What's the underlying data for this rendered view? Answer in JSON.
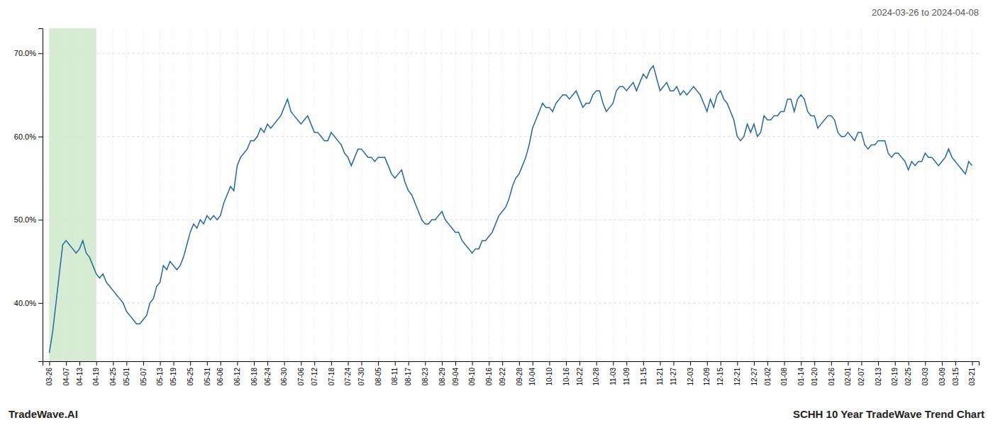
{
  "chart_data": {
    "type": "line",
    "title": "2024-03-26 to 2024-04-08",
    "annotations": [
      "TradeWave.AI",
      "SCHH 10 Year TradeWave Trend Chart"
    ],
    "color": "#2266aa",
    "grid": true,
    "ylim": [
      33,
      73
    ],
    "yticks": [
      {
        "value": 40.0,
        "label": "40.0%"
      },
      {
        "value": 50.0,
        "label": "50.0%"
      },
      {
        "value": 60.0,
        "label": "60.0%"
      },
      {
        "value": 70.0,
        "label": "70.0%"
      }
    ],
    "highlight": {
      "start": 0,
      "end": 14,
      "color": "#d6ecd2"
    },
    "categories": [
      "03-26",
      null,
      null,
      null,
      null,
      "04-07",
      null,
      null,
      null,
      "04-13",
      null,
      null,
      null,
      null,
      "04-19",
      null,
      null,
      null,
      null,
      "04-25",
      null,
      null,
      null,
      "05-01",
      null,
      null,
      null,
      null,
      "05-07",
      null,
      null,
      null,
      null,
      "05-13",
      null,
      null,
      null,
      "05-19",
      null,
      null,
      null,
      null,
      "05-25",
      null,
      null,
      null,
      null,
      "05-31",
      null,
      null,
      null,
      "06-06",
      null,
      null,
      null,
      null,
      "06-12",
      null,
      null,
      null,
      null,
      "06-18",
      null,
      null,
      null,
      "06-24",
      null,
      null,
      null,
      null,
      "06-30",
      null,
      null,
      null,
      null,
      "07-06",
      null,
      null,
      null,
      "07-12",
      null,
      null,
      null,
      null,
      "07-18",
      null,
      null,
      null,
      null,
      "07-24",
      null,
      null,
      null,
      "07-30",
      null,
      null,
      null,
      null,
      "08-05",
      null,
      null,
      null,
      null,
      "08-11",
      null,
      null,
      null,
      "08-17",
      null,
      null,
      null,
      null,
      "08-23",
      null,
      null,
      null,
      null,
      "08-29",
      null,
      null,
      null,
      "09-04",
      null,
      null,
      null,
      null,
      "09-10",
      null,
      null,
      null,
      null,
      "09-16",
      null,
      null,
      null,
      "09-22",
      null,
      null,
      null,
      null,
      "09-28",
      null,
      null,
      null,
      "10-04",
      null,
      null,
      null,
      null,
      "10-10",
      null,
      null,
      null,
      null,
      "10-16",
      null,
      null,
      null,
      "10-22",
      null,
      null,
      null,
      null,
      "10-28",
      null,
      null,
      null,
      null,
      "11-03",
      null,
      null,
      null,
      "11-09",
      null,
      null,
      null,
      null,
      "11-15",
      null,
      null,
      null,
      null,
      "11-21",
      null,
      null,
      null,
      "11-27",
      null,
      null,
      null,
      null,
      "12-03",
      null,
      null,
      null,
      null,
      "12-09",
      null,
      null,
      null,
      "12-15",
      null,
      null,
      null,
      null,
      "12-21",
      null,
      null,
      null,
      null,
      "12-27",
      null,
      null,
      null,
      "01-02",
      null,
      null,
      null,
      null,
      "01-08",
      null,
      null,
      null,
      null,
      "01-14",
      null,
      null,
      null,
      "01-20",
      null,
      null,
      null,
      null,
      "01-26",
      null,
      null,
      null,
      null,
      "02-01",
      null,
      null,
      null,
      "02-07",
      null,
      null,
      null,
      null,
      "02-13",
      null,
      null,
      null,
      null,
      "02-19",
      null,
      null,
      null,
      "02-25",
      null,
      null,
      null,
      null,
      "03-03",
      null,
      null,
      null,
      null,
      "03-09",
      null,
      null,
      null,
      "03-15",
      null,
      null,
      null,
      null,
      "03-21"
    ],
    "values": [
      34.0,
      36.5,
      40.0,
      43.5,
      47.0,
      47.5,
      47.0,
      46.5,
      46.0,
      46.5,
      47.5,
      46.0,
      45.5,
      44.5,
      43.5,
      43.0,
      43.5,
      42.5,
      42.0,
      41.5,
      41.0,
      40.5,
      40.0,
      39.0,
      38.5,
      38.0,
      37.5,
      37.5,
      38.0,
      38.5,
      40.0,
      40.5,
      42.0,
      42.5,
      44.5,
      44.0,
      45.0,
      44.5,
      44.0,
      44.5,
      45.5,
      47.0,
      48.5,
      49.5,
      49.0,
      50.0,
      49.5,
      50.5,
      50.0,
      50.5,
      50.0,
      50.5,
      52.0,
      53.0,
      54.0,
      53.5,
      56.5,
      57.5,
      58.0,
      58.5,
      59.5,
      59.5,
      60.0,
      61.0,
      60.5,
      61.5,
      61.0,
      61.5,
      62.0,
      62.5,
      63.5,
      64.5,
      63.0,
      62.5,
      62.0,
      61.5,
      62.0,
      62.5,
      61.5,
      60.5,
      60.5,
      60.0,
      59.5,
      59.5,
      60.5,
      60.0,
      59.5,
      59.0,
      58.0,
      57.5,
      56.5,
      57.5,
      58.5,
      58.5,
      58.0,
      57.5,
      57.5,
      57.0,
      57.5,
      57.5,
      57.5,
      56.5,
      55.5,
      55.0,
      55.5,
      56.0,
      54.5,
      53.5,
      53.0,
      52.0,
      51.0,
      50.0,
      49.5,
      49.5,
      50.0,
      50.0,
      50.5,
      51.0,
      50.0,
      49.5,
      49.0,
      48.5,
      48.5,
      47.5,
      47.0,
      46.5,
      46.0,
      46.5,
      46.5,
      47.5,
      47.5,
      48.0,
      48.5,
      49.5,
      50.5,
      51.0,
      51.5,
      52.5,
      54.0,
      55.0,
      55.5,
      56.5,
      57.5,
      59.0,
      61.0,
      62.0,
      63.0,
      64.0,
      63.5,
      63.5,
      63.0,
      64.0,
      64.5,
      65.0,
      65.0,
      64.5,
      65.0,
      65.5,
      64.5,
      63.5,
      64.0,
      64.0,
      65.0,
      65.5,
      65.5,
      64.0,
      63.0,
      63.5,
      64.0,
      65.5,
      66.0,
      66.0,
      65.5,
      66.0,
      66.5,
      65.5,
      66.5,
      67.5,
      67.0,
      68.0,
      68.5,
      67.0,
      65.5,
      66.0,
      66.5,
      65.5,
      65.5,
      66.0,
      65.0,
      65.5,
      65.0,
      65.5,
      66.0,
      65.5,
      65.0,
      64.0,
      63.0,
      64.5,
      63.5,
      65.0,
      65.5,
      64.5,
      64.0,
      63.0,
      62.0,
      60.0,
      59.5,
      60.0,
      61.5,
      60.5,
      61.5,
      60.0,
      60.5,
      62.5,
      62.0,
      62.0,
      62.5,
      62.5,
      63.0,
      63.0,
      64.5,
      64.5,
      63.0,
      64.5,
      65.0,
      64.5,
      63.0,
      62.5,
      62.5,
      61.0,
      61.5,
      62.0,
      62.5,
      62.5,
      62.0,
      60.5,
      60.0,
      60.0,
      60.5,
      60.0,
      59.5,
      60.5,
      60.5,
      59.0,
      58.5,
      59.0,
      59.0,
      59.5,
      59.5,
      59.5,
      58.0,
      57.5,
      58.0,
      58.0,
      57.5,
      57.0,
      56.0,
      57.0,
      56.5,
      57.0,
      57.0,
      58.0,
      57.5,
      57.5,
      57.0,
      56.5,
      57.0,
      57.5,
      58.5,
      57.5,
      57.0,
      56.5,
      56.0,
      55.5,
      57.0,
      56.5
    ]
  }
}
